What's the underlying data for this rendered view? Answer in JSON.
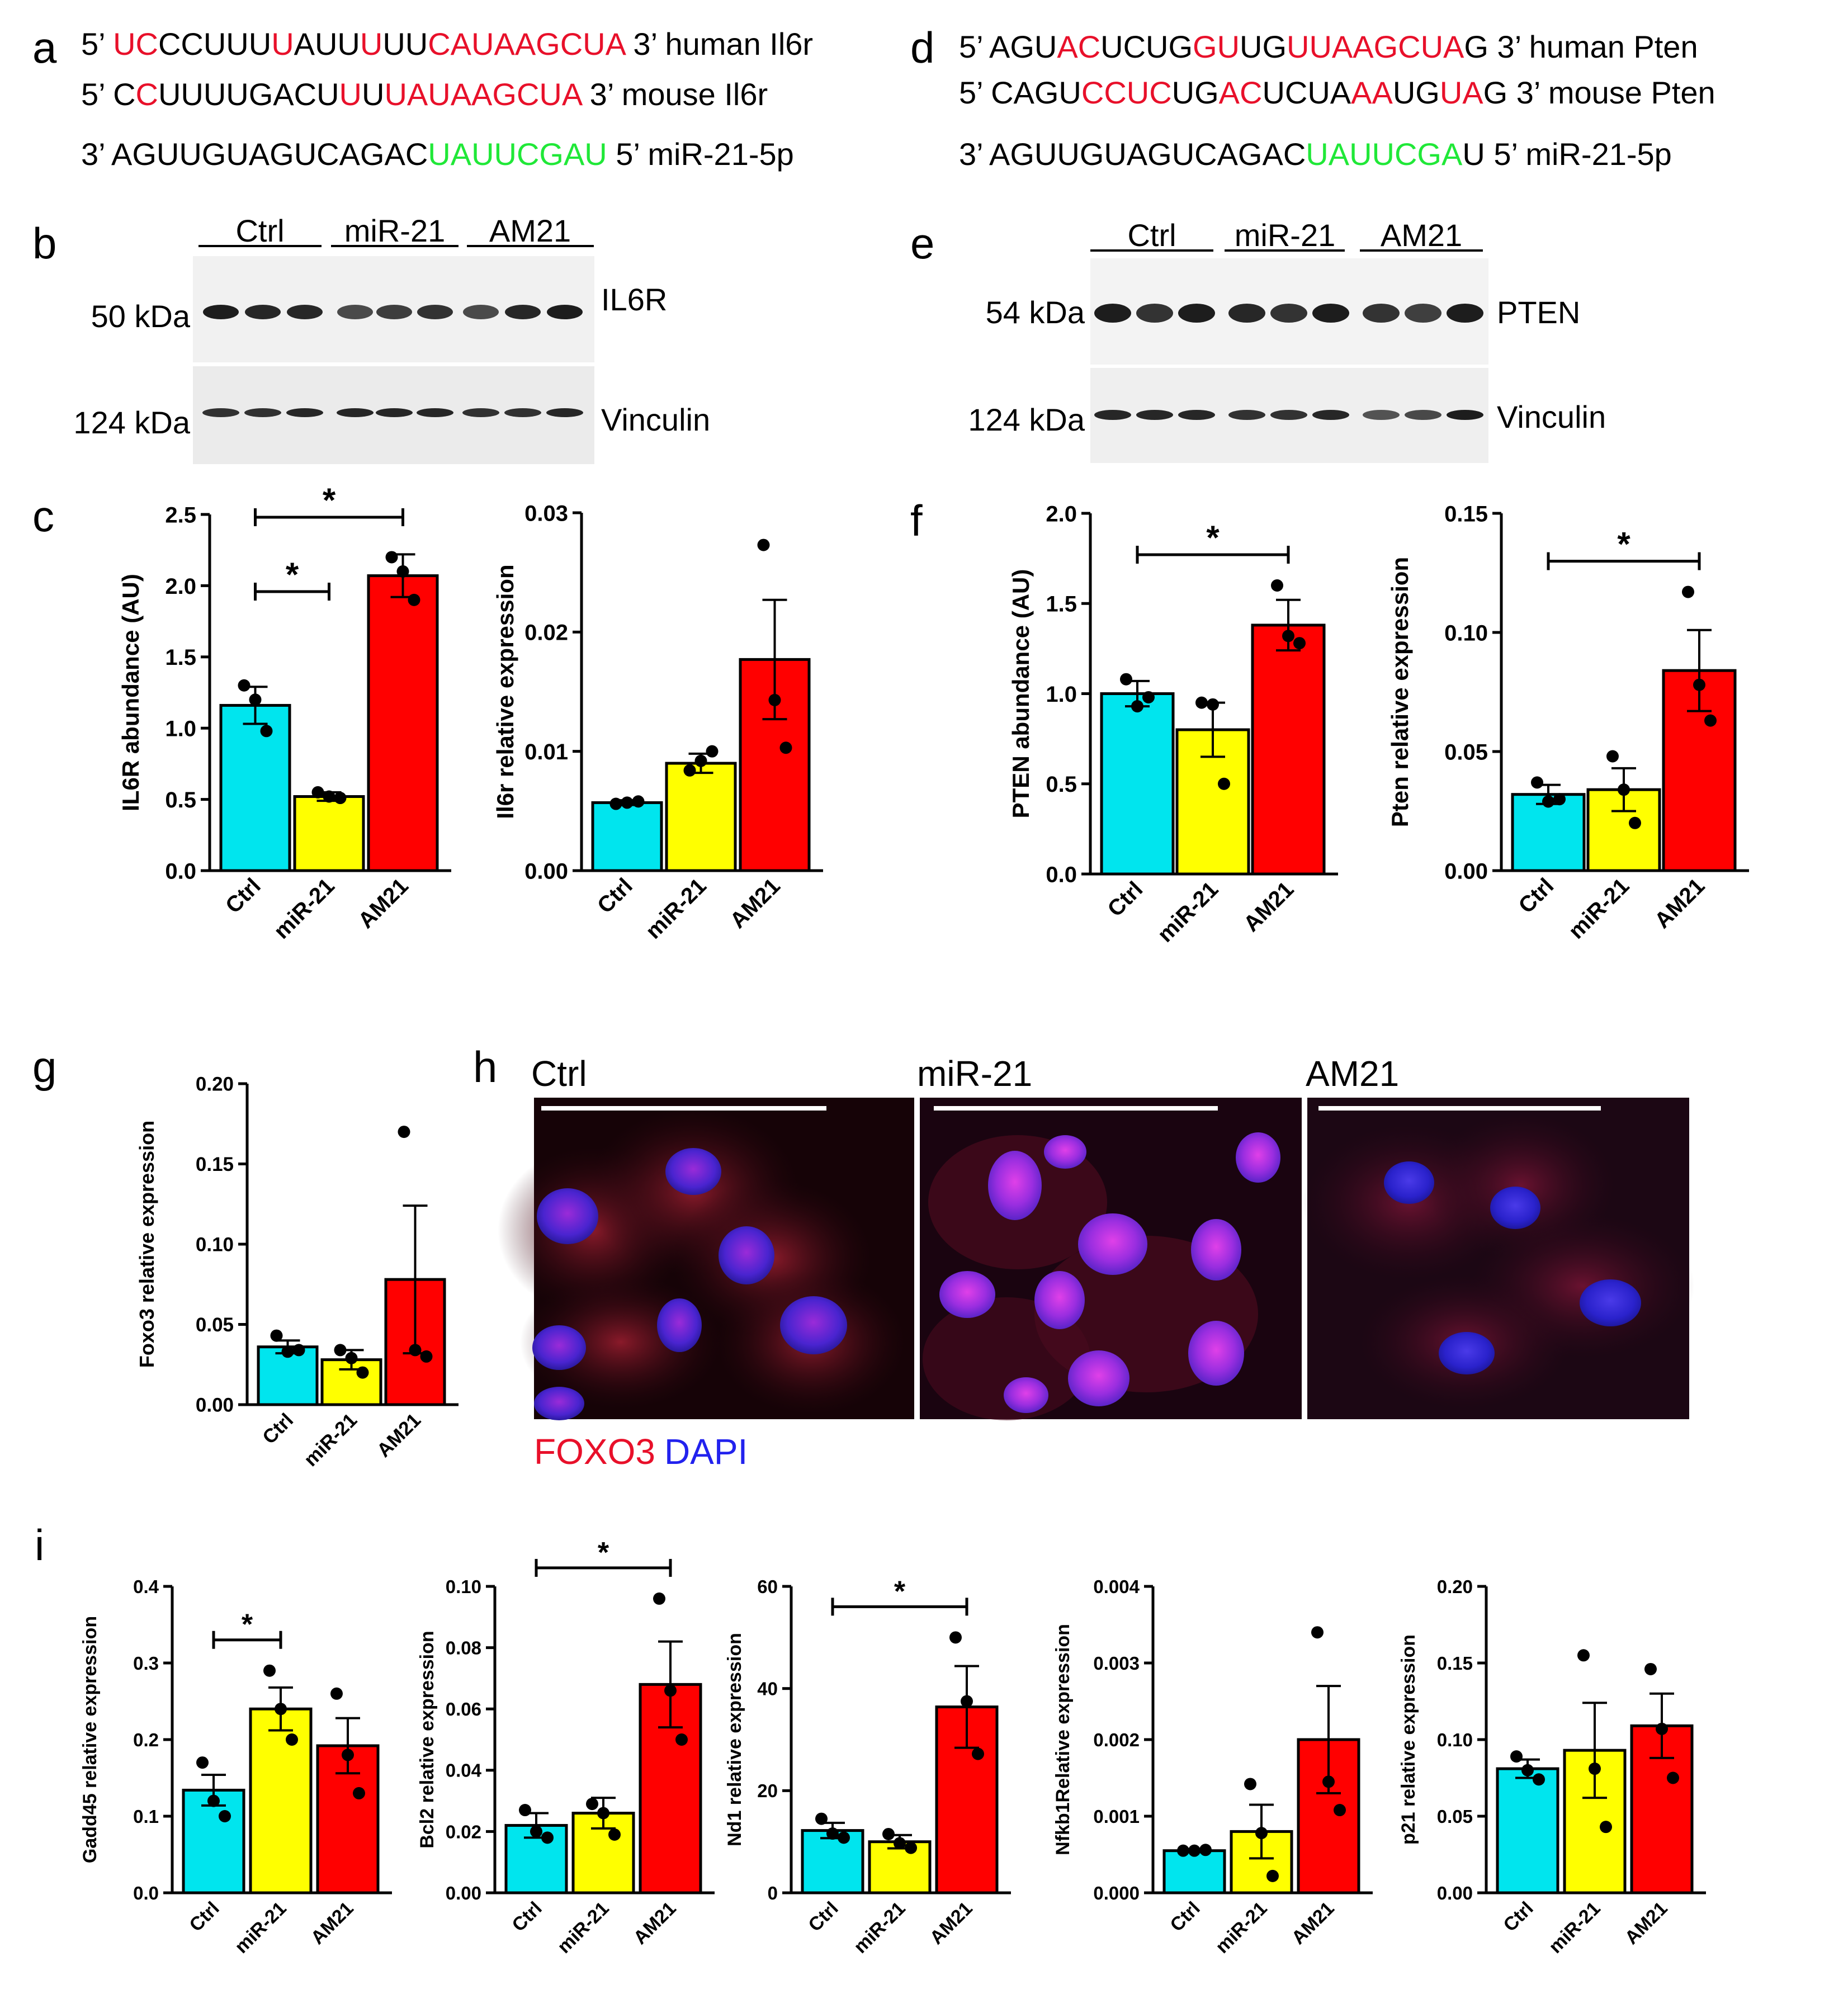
{
  "colors": {
    "ctrl": "#00e5ee",
    "mir21": "#ffff00",
    "am21": "#ff0000",
    "red": "#e8102a",
    "green": "#20e838",
    "black": "#000000",
    "blue": "#2222ee"
  },
  "panels": {
    "a": "a",
    "b": "b",
    "c": "c",
    "d": "d",
    "e": "e",
    "f": "f",
    "g": "g",
    "h": "h",
    "i": "i"
  },
  "seq": {
    "a": {
      "rows": [
        {
          "p5": "5’ ",
          "seq": [
            {
              "t": "UC",
              "c": "r"
            },
            {
              "t": "CCUUU",
              "c": "k"
            },
            {
              "t": "U",
              "c": "r"
            },
            {
              "t": "AUU",
              "c": "k"
            },
            {
              "t": "U",
              "c": "r"
            },
            {
              "t": "UU",
              "c": "k"
            },
            {
              "t": "C",
              "c": "r"
            },
            {
              "t": "AUAAGCUA",
              "c": "r"
            }
          ],
          "tail": " 3’ human Il6r"
        },
        {
          "p5": "5’ ",
          "seq": [
            {
              "t": "C",
              "c": "k"
            },
            {
              "t": "C",
              "c": "r"
            },
            {
              "t": "UUUUGACU",
              "c": "k"
            },
            {
              "t": "U",
              "c": "r"
            },
            {
              "t": "U",
              "c": "k"
            },
            {
              "t": "U",
              "c": "r"
            },
            {
              "t": "AUAAGCUA",
              "c": "r"
            }
          ],
          "tail": " 3’ mouse Il6r"
        },
        {
          "p5": "3’ ",
          "seq": [
            {
              "t": "AGUUGUAGUCAGAC",
              "c": "k"
            },
            {
              "t": "UAUUCGAU",
              "c": "g"
            }
          ],
          "tail": " 5’ miR-21-5p"
        }
      ]
    },
    "d": {
      "rows": [
        {
          "p5": "5’ ",
          "seq": [
            {
              "t": "AGU",
              "c": "k"
            },
            {
              "t": "AC",
              "c": "r"
            },
            {
              "t": "UCUG",
              "c": "k"
            },
            {
              "t": "GU",
              "c": "r"
            },
            {
              "t": "UG",
              "c": "k"
            },
            {
              "t": "UUAAGCUA",
              "c": "r"
            },
            {
              "t": "G",
              "c": "k"
            }
          ],
          "tail": " 3’ human Pten"
        },
        {
          "p5": "5’ ",
          "seq": [
            {
              "t": "CAGU",
              "c": "k"
            },
            {
              "t": "CC",
              "c": "r"
            },
            {
              "t": "UC",
              "c": "r"
            },
            {
              "t": "UG",
              "c": "k"
            },
            {
              "t": "AC",
              "c": "r"
            },
            {
              "t": "UCUA",
              "c": "k"
            },
            {
              "t": "AA",
              "c": "r"
            },
            {
              "t": "UG",
              "c": "k"
            },
            {
              "t": "UA",
              "c": "r"
            },
            {
              "t": "G",
              "c": "k"
            }
          ],
          "tail": " 3’ mouse Pten"
        },
        {
          "p5": "3’ ",
          "seq": [
            {
              "t": "AGUUGUAGUCAGAC",
              "c": "k"
            },
            {
              "t": "UAUUCGA",
              "c": "g"
            },
            {
              "t": "U",
              "c": "k"
            }
          ],
          "tail": " 5’ miR-21-5p"
        }
      ]
    }
  },
  "blots": {
    "b": {
      "groups": [
        "Ctrl",
        "miR-21",
        "AM21"
      ],
      "top_mw": "50 kDa",
      "top_name": "IL6R",
      "bot_mw": "124 kDa",
      "bot_name": "Vinculin"
    },
    "e": {
      "groups": [
        "Ctrl",
        "miR-21",
        "AM21"
      ],
      "top_mw": "54 kDa",
      "top_name": "PTEN",
      "bot_mw": "124 kDa",
      "bot_name": "Vinculin"
    }
  },
  "micro": {
    "labels": [
      "Ctrl",
      "miR-21",
      "AM21"
    ],
    "legend_red": "FOXO3",
    "legend_blue": "DAPI"
  },
  "chart_data": [
    {
      "id": "c1",
      "type": "bar",
      "categories": [
        "Ctrl",
        "miR-21",
        "AM21"
      ],
      "values": [
        1.16,
        0.52,
        2.07
      ],
      "errors": [
        0.13,
        0.03,
        0.15
      ],
      "points": [
        [
          1.3,
          1.2,
          0.98
        ],
        [
          0.55,
          0.52,
          0.51
        ],
        [
          2.2,
          2.1,
          1.9
        ]
      ],
      "ylabel": "IL6R abundance (AU)",
      "ylim": [
        0,
        2.5
      ],
      "ticks": [
        0.0,
        0.5,
        1.0,
        1.5,
        2.0,
        2.5
      ],
      "tick_labels": [
        "0.0",
        "0.5",
        "1.0",
        "1.5",
        "2.0",
        "2.5"
      ],
      "sig": [
        {
          "from": 0,
          "to": 1,
          "label": "*"
        },
        {
          "from": 0,
          "to": 2,
          "label": "*"
        }
      ]
    },
    {
      "id": "c2",
      "type": "bar",
      "categories": [
        "Ctrl",
        "miR-21",
        "AM21"
      ],
      "values": [
        0.0057,
        0.009,
        0.0177
      ],
      "errors": [
        0.0002,
        0.0008,
        0.005
      ],
      "points": [
        [
          0.0056,
          0.0057,
          0.0058
        ],
        [
          0.0084,
          0.0092,
          0.01
        ],
        [
          0.0273,
          0.0143,
          0.0103
        ]
      ],
      "ylabel": "Il6r relative expression",
      "ylim": [
        0,
        0.03
      ],
      "ticks": [
        0,
        0.01,
        0.02,
        0.03
      ],
      "tick_labels": [
        "0.00",
        "0.01",
        "0.02",
        "0.03"
      ],
      "sig": []
    },
    {
      "id": "f1",
      "type": "bar",
      "categories": [
        "Ctrl",
        "miR-21",
        "AM21"
      ],
      "values": [
        1.0,
        0.8,
        1.38
      ],
      "errors": [
        0.07,
        0.15,
        0.14
      ],
      "points": [
        [
          1.08,
          0.93,
          0.98
        ],
        [
          0.95,
          0.94,
          0.5
        ],
        [
          1.6,
          1.32,
          1.28
        ]
      ],
      "ylabel": "PTEN abundance (AU)",
      "ylim": [
        0,
        2.0
      ],
      "ticks": [
        0,
        0.5,
        1.0,
        1.5,
        2.0
      ],
      "tick_labels": [
        "0.0",
        "0.5",
        "1.0",
        "1.5",
        "2.0"
      ],
      "sig": [
        {
          "from": 0,
          "to": 2,
          "label": "*"
        }
      ]
    },
    {
      "id": "f2",
      "type": "bar",
      "categories": [
        "Ctrl",
        "miR-21",
        "AM21"
      ],
      "values": [
        0.032,
        0.034,
        0.084
      ],
      "errors": [
        0.004,
        0.009,
        0.017
      ],
      "points": [
        [
          0.037,
          0.029,
          0.03
        ],
        [
          0.048,
          0.034,
          0.02
        ],
        [
          0.117,
          0.078,
          0.063
        ]
      ],
      "ylabel": "Pten relative expression",
      "ylim": [
        0,
        0.15
      ],
      "ticks": [
        0,
        0.05,
        0.1,
        0.15
      ],
      "tick_labels": [
        "0.00",
        "0.05",
        "0.10",
        "0.15"
      ],
      "sig": [
        {
          "from": 0,
          "to": 2,
          "label": "*"
        }
      ]
    },
    {
      "id": "g1",
      "type": "bar",
      "categories": [
        "Ctrl",
        "miR-21",
        "AM21"
      ],
      "values": [
        0.036,
        0.028,
        0.078
      ],
      "errors": [
        0.004,
        0.006,
        0.046
      ],
      "points": [
        [
          0.043,
          0.033,
          0.034
        ],
        [
          0.034,
          0.029,
          0.02
        ],
        [
          0.17,
          0.034,
          0.03
        ]
      ],
      "ylabel": "Foxo3 relative expression",
      "ylim": [
        0,
        0.2
      ],
      "ticks": [
        0,
        0.05,
        0.1,
        0.15,
        0.2
      ],
      "tick_labels": [
        "0.00",
        "0.05",
        "0.10",
        "0.15",
        "0.20"
      ],
      "sig": []
    },
    {
      "id": "i1",
      "type": "bar",
      "categories": [
        "Ctrl",
        "miR-21",
        "AM21"
      ],
      "values": [
        0.134,
        0.24,
        0.192
      ],
      "errors": [
        0.02,
        0.028,
        0.036
      ],
      "points": [
        [
          0.17,
          0.12,
          0.1
        ],
        [
          0.29,
          0.24,
          0.2
        ],
        [
          0.26,
          0.18,
          0.13
        ]
      ],
      "ylabel": "Gadd45 relative expression",
      "ylim": [
        0,
        0.4
      ],
      "ticks": [
        0,
        0.1,
        0.2,
        0.3,
        0.4
      ],
      "tick_labels": [
        "0.0",
        "0.1",
        "0.2",
        "0.3",
        "0.4"
      ],
      "sig": [
        {
          "from": 0,
          "to": 1,
          "label": "*"
        }
      ]
    },
    {
      "id": "i2",
      "type": "bar",
      "categories": [
        "Ctrl",
        "miR-21",
        "AM21"
      ],
      "values": [
        0.022,
        0.026,
        0.068
      ],
      "errors": [
        0.004,
        0.005,
        0.014
      ],
      "points": [
        [
          0.027,
          0.02,
          0.018
        ],
        [
          0.029,
          0.026,
          0.019
        ],
        [
          0.096,
          0.066,
          0.05
        ]
      ],
      "ylabel": "Bcl2 relative expression",
      "ylim": [
        0,
        0.1
      ],
      "ticks": [
        0,
        0.02,
        0.04,
        0.06,
        0.08,
        0.1
      ],
      "tick_labels": [
        "0.00",
        "0.02",
        "0.04",
        "0.06",
        "0.08",
        "0.10"
      ],
      "sig": [
        {
          "from": 0,
          "to": 2,
          "label": "*"
        }
      ]
    },
    {
      "id": "i3",
      "type": "bar",
      "categories": [
        "Ctrl",
        "miR-21",
        "AM21"
      ],
      "values": [
        12.2,
        10.0,
        36.4
      ],
      "errors": [
        1.5,
        1.3,
        8.0
      ],
      "points": [
        [
          14.5,
          11.6,
          10.8
        ],
        [
          11.5,
          9.7,
          8.8
        ],
        [
          50.0,
          37.5,
          27.2
        ]
      ],
      "ylabel": "Nd1 relative expression",
      "ylim": [
        0,
        60
      ],
      "ticks": [
        0,
        20,
        40,
        60
      ],
      "tick_labels": [
        "0",
        "20",
        "40",
        "60"
      ],
      "sig": [
        {
          "from": 0,
          "to": 2,
          "label": "*"
        }
      ]
    },
    {
      "id": "i4",
      "type": "bar",
      "categories": [
        "Ctrl",
        "miR-21",
        "AM21"
      ],
      "values": [
        0.00055,
        0.0008,
        0.002
      ],
      "errors": [
        2e-05,
        0.00035,
        0.0007
      ],
      "points": [
        [
          0.00055,
          0.00055,
          0.00056
        ],
        [
          0.00142,
          0.00078,
          0.00022
        ],
        [
          0.0034,
          0.00145,
          0.00108
        ]
      ],
      "ylabel": "Nfkb1Relative expression",
      "ylim": [
        0,
        0.004
      ],
      "ticks": [
        0,
        0.001,
        0.002,
        0.003,
        0.004
      ],
      "tick_labels": [
        "0.000",
        "0.001",
        "0.002",
        "0.003",
        "0.004"
      ],
      "sig": []
    },
    {
      "id": "i5",
      "type": "bar",
      "categories": [
        "Ctrl",
        "miR-21",
        "AM21"
      ],
      "values": [
        0.081,
        0.093,
        0.109
      ],
      "errors": [
        0.006,
        0.031,
        0.021
      ],
      "points": [
        [
          0.089,
          0.08,
          0.074
        ],
        [
          0.155,
          0.081,
          0.043
        ],
        [
          0.146,
          0.107,
          0.075
        ]
      ],
      "ylabel": "p21 relative expression",
      "ylim": [
        0,
        0.2
      ],
      "ticks": [
        0,
        0.05,
        0.1,
        0.15,
        0.2
      ],
      "tick_labels": [
        "0.00",
        "0.05",
        "0.10",
        "0.15",
        "0.20"
      ],
      "sig": []
    }
  ]
}
